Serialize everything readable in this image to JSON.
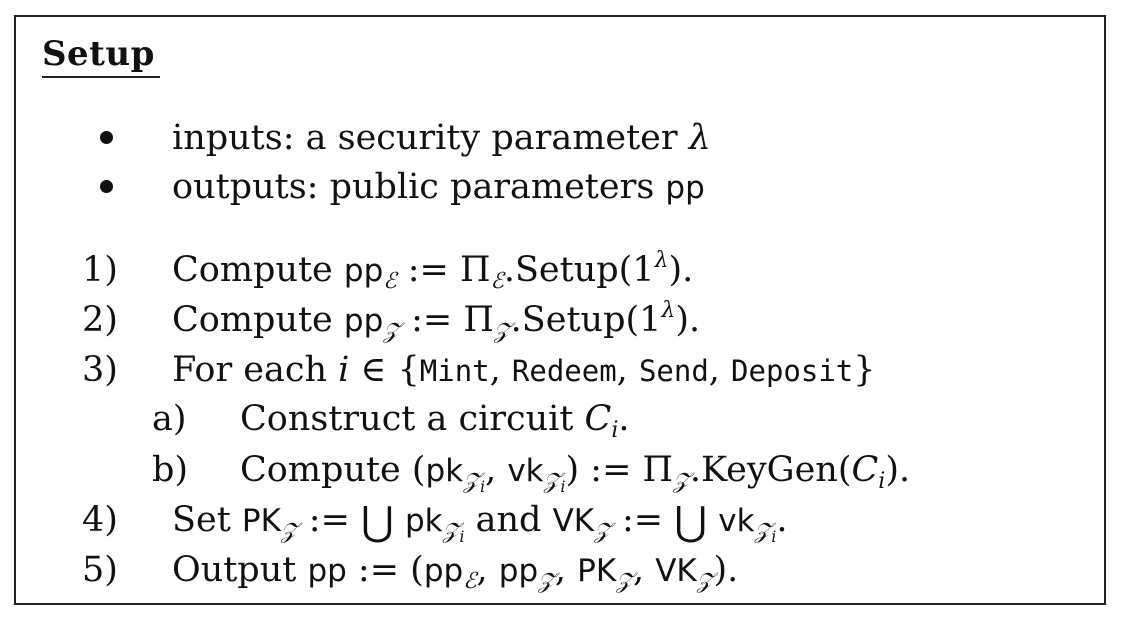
{
  "title": "Setup",
  "bullets": [
    {
      "text": "inputs: a security parameter ",
      "symbol": "λ"
    },
    {
      "text": "outputs: public parameters ",
      "symbol": "pp"
    }
  ],
  "steps": {
    "s1": {
      "marker": "1)",
      "lead": "Compute ",
      "pp": "pp",
      "sub": "ℰ",
      "assign": " := Π",
      "op": ".Setup(1",
      "sup": "λ",
      "end": ")."
    },
    "s2": {
      "marker": "2)",
      "lead": "Compute ",
      "pp": "pp",
      "sub": "𝒵",
      "assign": " := Π",
      "op": ".Setup(1",
      "sup": "λ",
      "end": ")."
    },
    "s3": {
      "marker": "3)",
      "lead": "For each ",
      "var": "i",
      "in": " ∈ {",
      "items": [
        "Mint",
        "Redeem",
        "Send",
        "Deposit"
      ],
      "close": "}"
    },
    "s3a": {
      "marker": "a)",
      "lead": "Construct a circuit ",
      "var": "C",
      "sub": "i",
      "end": "."
    },
    "s3b": {
      "marker": "b)",
      "lead": "Compute (",
      "pk": "pk",
      "vk": "vk",
      "sub": "𝒵",
      "subsub": "i",
      "assign": ") := Π",
      "op": ".KeyGen(",
      "var": "C",
      "varsub": "i",
      "end": ")."
    },
    "s4": {
      "marker": "4)",
      "lead": "Set ",
      "PK": "PK",
      "VK": "VK",
      "sub": "𝒵",
      "assign": " := ",
      "cup": "⋃",
      "pk": "pk",
      "vk": "vk",
      "subsub": "i",
      "and": " and ",
      "end": "."
    },
    "s5": {
      "marker": "5)",
      "lead": "Output ",
      "pp": "pp",
      "assign": " := (",
      "sub_e": "ℰ",
      "sub_z": "𝒵",
      "PK": "PK",
      "VK": "VK",
      "comma": ", ",
      "end": ")."
    }
  }
}
